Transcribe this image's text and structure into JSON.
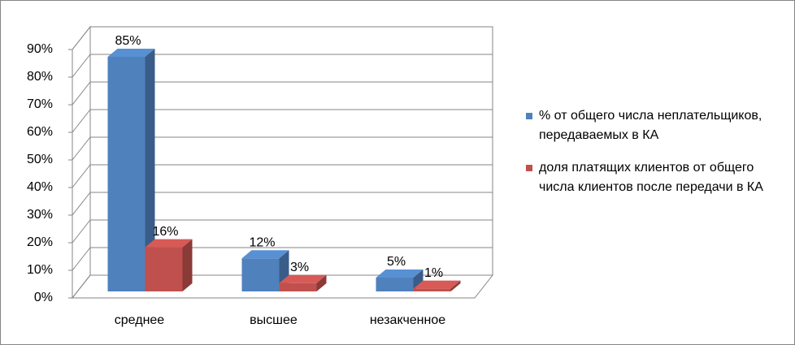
{
  "chart_data": {
    "type": "bar3d",
    "categories": [
      "среднее",
      "высшее",
      "незакченное"
    ],
    "series": [
      {
        "name": "% от общего числа неплательщиков, передаваемых в КА",
        "color": "#4f81bd",
        "values": [
          85,
          12,
          5
        ],
        "value_labels": [
          "85%",
          "12%",
          "5%"
        ]
      },
      {
        "name": "доля платящих клиентов от общего числа клиентов после передачи в КА",
        "color": "#c0504d",
        "values": [
          16,
          3,
          1
        ],
        "value_labels": [
          "16%",
          "3%",
          "1%"
        ]
      }
    ],
    "ylim": [
      0,
      90
    ],
    "yticks": [
      {
        "value": 0,
        "label": "0%"
      },
      {
        "value": 10,
        "label": "10%"
      },
      {
        "value": 20,
        "label": "20%"
      },
      {
        "value": 30,
        "label": "30%"
      },
      {
        "value": 40,
        "label": "40%"
      },
      {
        "value": 50,
        "label": "50%"
      },
      {
        "value": 60,
        "label": "60%"
      },
      {
        "value": 70,
        "label": "70%"
      },
      {
        "value": 80,
        "label": "80%"
      },
      {
        "value": 90,
        "label": "90%"
      }
    ],
    "grid": true,
    "legend": "right"
  }
}
